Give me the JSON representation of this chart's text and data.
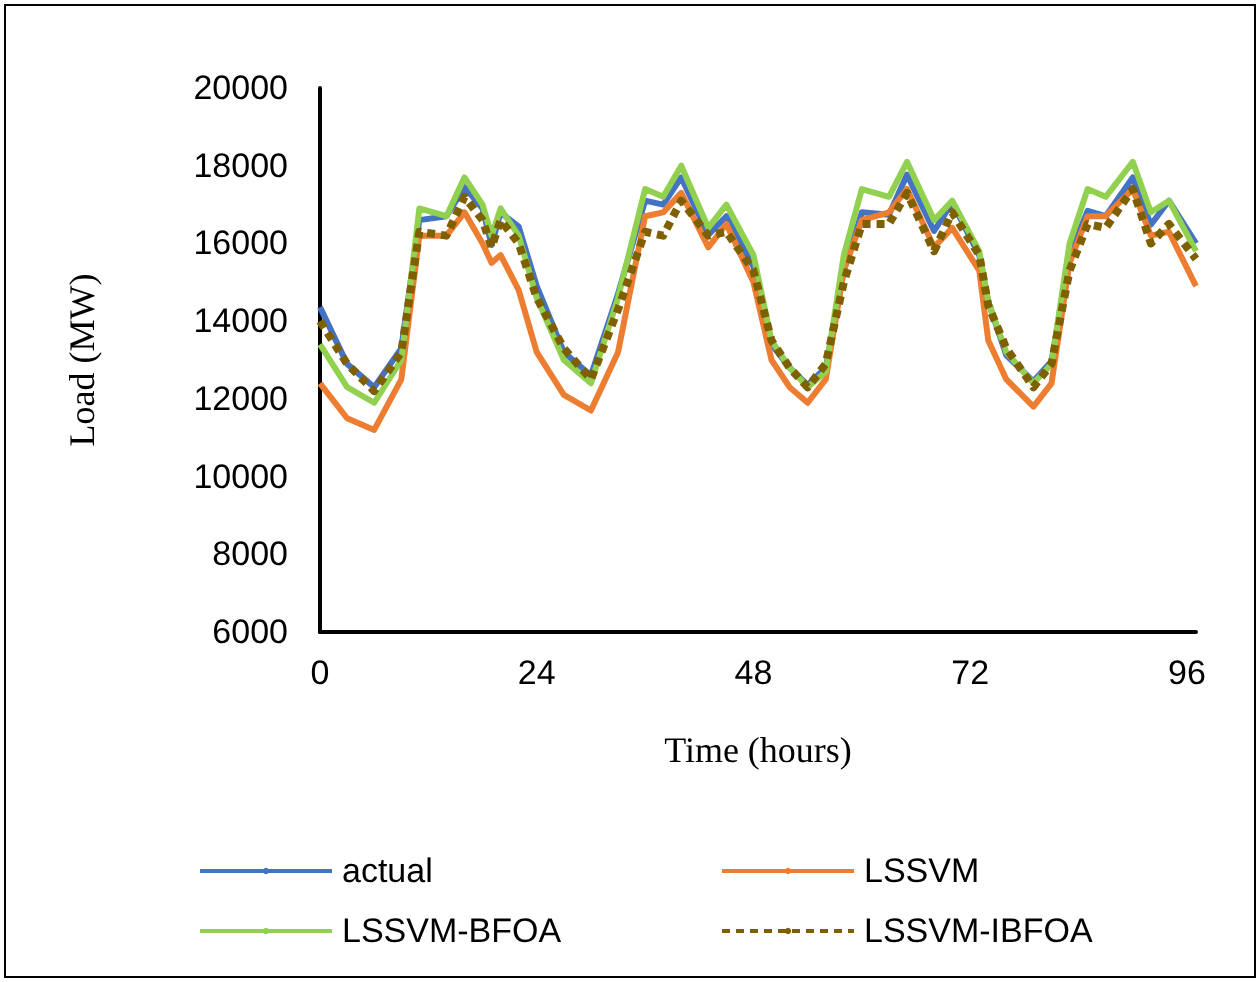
{
  "chart_data": {
    "type": "line",
    "xlabel": "Time (hours)",
    "ylabel": "Load (MW)",
    "x": [
      0,
      3,
      6,
      9,
      11,
      14,
      16,
      18,
      19,
      20,
      22,
      24,
      27,
      30,
      33,
      36,
      38,
      40,
      43,
      45,
      48,
      50,
      52,
      54,
      56,
      58,
      60,
      63,
      65,
      68,
      70,
      73,
      74,
      76,
      79,
      81,
      83,
      85,
      87,
      90,
      92,
      94,
      97
    ],
    "xlim": [
      0,
      97
    ],
    "xticks": [
      0,
      24,
      48,
      72,
      96
    ],
    "ylim": [
      6000,
      20000
    ],
    "yticks": [
      6000,
      8000,
      10000,
      12000,
      14000,
      16000,
      18000,
      20000
    ],
    "grid": false,
    "legend": "bottom",
    "marker": "none",
    "series": [
      {
        "name": "actual",
        "color": "#4472c4",
        "line_style": "solid",
        "values": [
          14360,
          12900,
          12300,
          13300,
          16600,
          16700,
          17450,
          16900,
          15960,
          16800,
          16430,
          14900,
          13200,
          12600,
          14700,
          17100,
          17000,
          17700,
          16220,
          16700,
          15400,
          13400,
          12800,
          12350,
          12800,
          15300,
          16800,
          16740,
          17770,
          16320,
          17050,
          15700,
          14500,
          13120,
          12450,
          12970,
          15700,
          16840,
          16700,
          17700,
          16480,
          17100,
          16000
        ]
      },
      {
        "name": "LSSVM",
        "color": "#ed7d31",
        "line_style": "solid",
        "values": [
          12400,
          11500,
          11200,
          12500,
          16200,
          16200,
          16800,
          16000,
          15500,
          15700,
          14800,
          13200,
          12100,
          11700,
          13200,
          16700,
          16800,
          17300,
          15900,
          16500,
          15000,
          13000,
          12300,
          11900,
          12500,
          15300,
          16600,
          16800,
          17400,
          15900,
          16400,
          15300,
          13500,
          12500,
          11800,
          12400,
          15500,
          16700,
          16700,
          17400,
          16200,
          16300,
          14900
        ]
      },
      {
        "name": "LSSVM-BFOA",
        "color": "#92d050",
        "line_style": "solid",
        "values": [
          13400,
          12300,
          11900,
          13000,
          16900,
          16700,
          17700,
          17000,
          16200,
          16900,
          16200,
          14600,
          13000,
          12400,
          14600,
          17400,
          17200,
          18000,
          16400,
          17000,
          15700,
          13500,
          12800,
          12300,
          12700,
          15700,
          17400,
          17200,
          18100,
          16600,
          17100,
          15800,
          14500,
          13200,
          12400,
          12900,
          16000,
          17400,
          17200,
          18100,
          16800,
          17100,
          15800
        ]
      },
      {
        "name": "LSSVM-IBFOA",
        "color": "#7f6000",
        "line_style": "dashed",
        "values": [
          14000,
          12900,
          12200,
          13200,
          16300,
          16200,
          17200,
          16600,
          15900,
          16600,
          16000,
          14600,
          13300,
          12500,
          14300,
          16300,
          16200,
          17100,
          16200,
          16300,
          15300,
          13500,
          12800,
          12300,
          12900,
          15000,
          16500,
          16500,
          17300,
          15800,
          16800,
          15700,
          14400,
          13300,
          12300,
          12900,
          15300,
          16500,
          16400,
          17400,
          16000,
          16500,
          15600
        ]
      }
    ]
  }
}
